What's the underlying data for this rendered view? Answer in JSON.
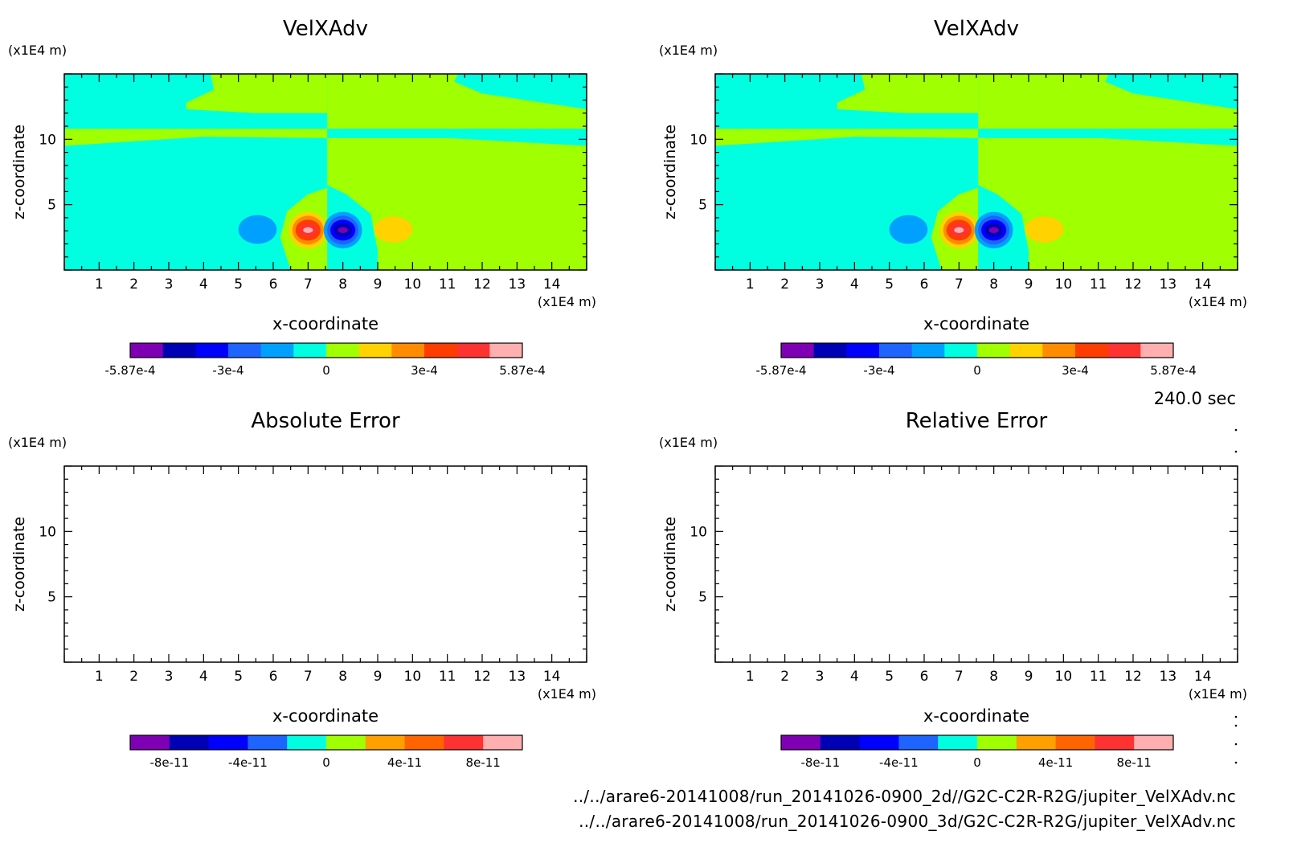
{
  "time_label": "240.0 sec",
  "files": [
    "../../arare6-20141008/run_20141026-0900_2d//G2C-C2R-R2G/jupiter_VelXAdv.nc",
    "../../arare6-20141008/run_20141026-0900_3d/G2C-C2R-R2G/jupiter_VelXAdv.nc"
  ],
  "chart_data": [
    {
      "type": "heatmap",
      "title": "VelXAdv",
      "xlabel": "x-coordinate",
      "ylabel": "z-coordinate",
      "x_unit": "(x1E4 m)",
      "y_unit": "(x1E4 m)",
      "xlim": [
        0,
        15
      ],
      "ylim": [
        0,
        15
      ],
      "xticks": [
        "1",
        "2",
        "3",
        "4",
        "5",
        "6",
        "7",
        "8",
        "9",
        "10",
        "11",
        "12",
        "13",
        "14"
      ],
      "yticks": [
        "5",
        "10"
      ],
      "colorbar": {
        "colors": [
          "#7f00b4",
          "#0000b4",
          "#0000ff",
          "#1e64ff",
          "#00a0ff",
          "#00ffe0",
          "#a0ff00",
          "#ffd200",
          "#ff8c00",
          "#ff3c00",
          "#ff3232",
          "#ffafaf"
        ],
        "tick_labels": [
          "-5.87e-4",
          "-3e-4",
          "0",
          "3e-4",
          "5.87e-4"
        ],
        "tick_positions": [
          0,
          0.25,
          0.5,
          0.75,
          1
        ]
      },
      "field": "VelXAdv (2d run)"
    },
    {
      "type": "heatmap",
      "title": "VelXAdv",
      "xlabel": "x-coordinate",
      "ylabel": "z-coordinate",
      "x_unit": "(x1E4 m)",
      "y_unit": "(x1E4 m)",
      "xlim": [
        0,
        15
      ],
      "ylim": [
        0,
        15
      ],
      "xticks": [
        "1",
        "2",
        "3",
        "4",
        "5",
        "6",
        "7",
        "8",
        "9",
        "10",
        "11",
        "12",
        "13",
        "14"
      ],
      "yticks": [
        "5",
        "10"
      ],
      "colorbar": {
        "colors": [
          "#7f00b4",
          "#0000b4",
          "#0000ff",
          "#1e64ff",
          "#00a0ff",
          "#00ffe0",
          "#a0ff00",
          "#ffd200",
          "#ff8c00",
          "#ff3c00",
          "#ff3232",
          "#ffafaf"
        ],
        "tick_labels": [
          "-5.87e-4",
          "-3e-4",
          "0",
          "3e-4",
          "5.87e-4"
        ],
        "tick_positions": [
          0,
          0.25,
          0.5,
          0.75,
          1
        ]
      },
      "field": "VelXAdv (3d run)"
    },
    {
      "type": "heatmap",
      "title": "Absolute Error",
      "xlabel": "x-coordinate",
      "ylabel": "z-coordinate",
      "x_unit": "(x1E4 m)",
      "y_unit": "(x1E4 m)",
      "xlim": [
        0,
        15
      ],
      "ylim": [
        0,
        15
      ],
      "xticks": [
        "1",
        "2",
        "3",
        "4",
        "5",
        "6",
        "7",
        "8",
        "9",
        "10",
        "11",
        "12",
        "13",
        "14"
      ],
      "yticks": [
        "5",
        "10"
      ],
      "colorbar": {
        "colors": [
          "#7f00b4",
          "#0000b4",
          "#0000ff",
          "#1e64ff",
          "#00ffe0",
          "#a0ff00",
          "#ffa000",
          "#ff6400",
          "#ff3232",
          "#ffafaf"
        ],
        "tick_labels": [
          "-8e-11",
          "-4e-11",
          "0",
          "4e-11",
          "8e-11"
        ],
        "tick_positions": [
          0.1,
          0.3,
          0.5,
          0.7,
          0.9
        ]
      },
      "field": "empty"
    },
    {
      "type": "heatmap",
      "title": "Relative Error",
      "xlabel": "x-coordinate",
      "ylabel": "z-coordinate",
      "x_unit": "(x1E4 m)",
      "y_unit": "(x1E4 m)",
      "xlim": [
        0,
        15
      ],
      "ylim": [
        0,
        15
      ],
      "xticks": [
        "1",
        "2",
        "3",
        "4",
        "5",
        "6",
        "7",
        "8",
        "9",
        "10",
        "11",
        "12",
        "13",
        "14"
      ],
      "yticks": [
        "5",
        "10"
      ],
      "colorbar": {
        "colors": [
          "#7f00b4",
          "#0000b4",
          "#0000ff",
          "#1e64ff",
          "#00ffe0",
          "#a0ff00",
          "#ffa000",
          "#ff6400",
          "#ff3232",
          "#ffafaf"
        ],
        "tick_labels": [
          "-8e-11",
          "-4e-11",
          "0",
          "4e-11",
          "8e-11"
        ],
        "tick_positions": [
          0.1,
          0.3,
          0.5,
          0.7,
          0.9
        ]
      },
      "field": "empty"
    }
  ]
}
